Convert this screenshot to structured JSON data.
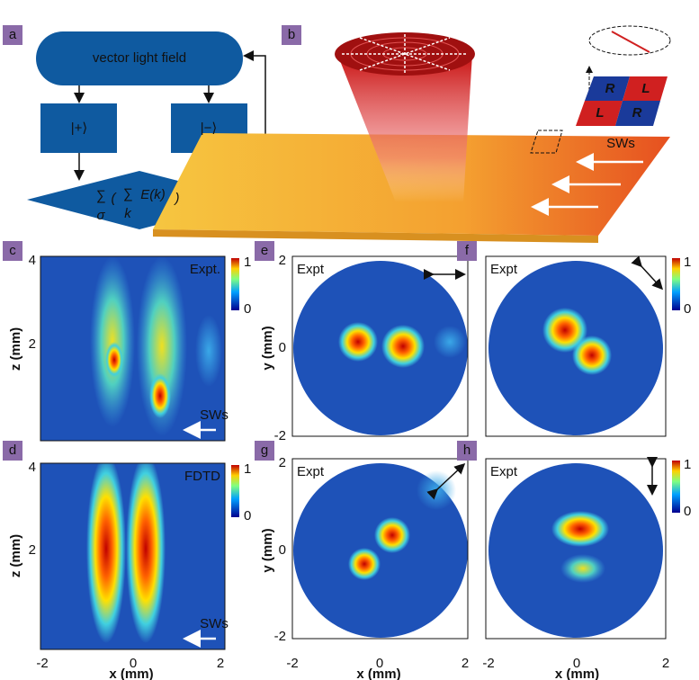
{
  "a": {
    "label": "a",
    "source": "vector light field",
    "plus": "|+⟩",
    "minus": "|−⟩",
    "formula": [
      "∑",
      "σ",
      "(",
      "∑",
      "k",
      "E(k)",
      ")"
    ]
  },
  "b": {
    "label": "b",
    "tiles": [
      "R",
      "L",
      "L",
      "R"
    ],
    "waves": "SWs"
  },
  "c": {
    "label": "c",
    "tag": "Expt.",
    "waves": "SWs",
    "ylabel": "z (mm)",
    "yticks": [
      4,
      2
    ],
    "cbar": [
      1,
      0
    ]
  },
  "d": {
    "label": "d",
    "tag": "FDTD",
    "waves": "SWs",
    "ylabel": "z (mm)",
    "yticks": [
      4,
      2
    ],
    "cbar": [
      1,
      0
    ],
    "xticks": [
      -2,
      0,
      2
    ],
    "xlabel": "x (mm)"
  },
  "e": {
    "label": "e",
    "tag": "Expt",
    "ylabel": "y (mm)",
    "yticks": [
      2,
      0,
      -2
    ]
  },
  "f": {
    "label": "f",
    "tag": "Expt",
    "cbar": [
      1,
      0
    ]
  },
  "g": {
    "label": "g",
    "tag": "Expt",
    "ylabel": "y (mm)",
    "yticks": [
      2,
      0,
      -2
    ],
    "xticks": [
      -2,
      0,
      2
    ],
    "xlabel": "x (mm)"
  },
  "h": {
    "label": "h",
    "tag": "Expt",
    "cbar": [
      1,
      0
    ],
    "xticks": [
      -2,
      0,
      2
    ],
    "xlabel": "x (mm)"
  }
}
